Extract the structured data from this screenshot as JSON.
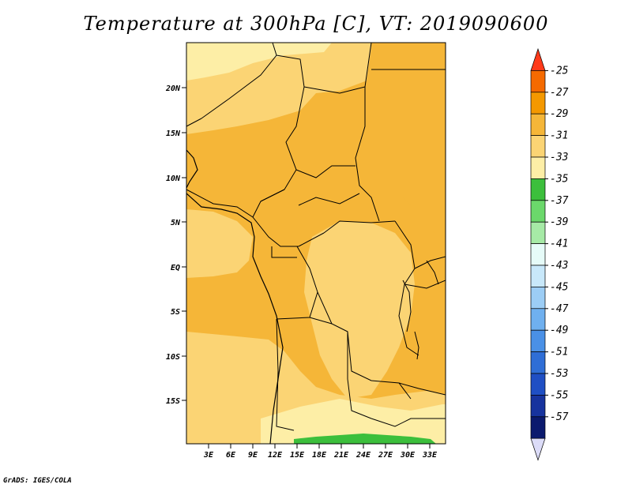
{
  "title": "Temperature at 300hPa [C], VT: 2019090600",
  "credit": "GrADS: IGES/COLA",
  "map": {
    "lat_ticks": [
      "20N",
      "15N",
      "10N",
      "5N",
      "EQ",
      "5S",
      "10S",
      "15S"
    ],
    "lon_ticks": [
      "3E",
      "6E",
      "9E",
      "12E",
      "15E",
      "18E",
      "21E",
      "24E",
      "27E",
      "30E",
      "33E"
    ]
  },
  "colorbar": {
    "labels": [
      "-25",
      "-27",
      "-29",
      "-31",
      "-33",
      "-35",
      "-37",
      "-39",
      "-41",
      "-43",
      "-45",
      "-47",
      "-49",
      "-51",
      "-53",
      "-55",
      "-57"
    ],
    "colors": [
      "#ff3a1a",
      "#f56a00",
      "#f49800",
      "#f5b638",
      "#fbd474",
      "#fdeea6",
      "#3cbf3c",
      "#6bd86b",
      "#a6eaa6",
      "#e6fbf8",
      "#c8e8fa",
      "#9ccdf5",
      "#6fb0ef",
      "#4a90e6",
      "#2f6ed6",
      "#1f4fc4",
      "#17339e",
      "#0b1a6e",
      "#dcdcf8"
    ]
  }
}
